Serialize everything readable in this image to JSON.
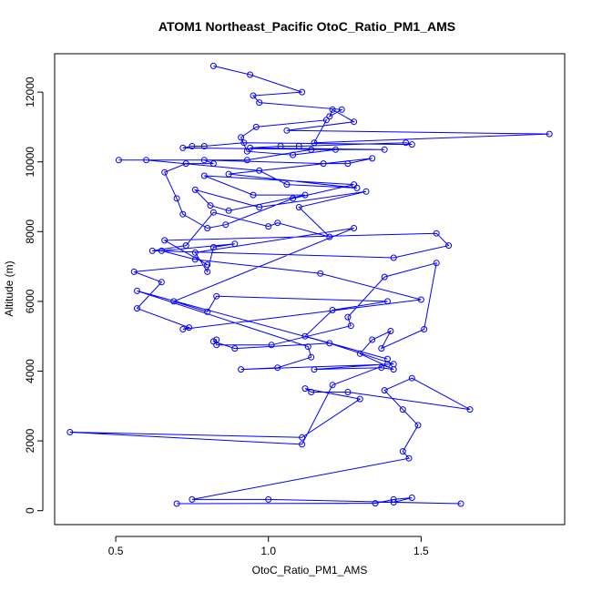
{
  "chart_data": {
    "type": "line",
    "title": "ATOM1 Northeast_Pacific OtoC_Ratio_PM1_AMS",
    "xlabel": "OtoC_Ratio_PM1_AMS",
    "ylabel": "Altitude (m)",
    "xlim": [
      0.3,
      1.97
    ],
    "ylim": [
      -400,
      13100
    ],
    "xticks": [
      0.5,
      1.0,
      1.5
    ],
    "xtick_labels": [
      "0.5",
      "1.0",
      "1.5"
    ],
    "yticks": [
      0,
      2000,
      4000,
      6000,
      8000,
      10000,
      12000
    ],
    "ytick_labels": [
      "0",
      "2000",
      "4000",
      "6000",
      "8000",
      "10000",
      "12000"
    ],
    "grid": false,
    "markers": "open-circle",
    "series_color": "#0000ff",
    "series": [
      {
        "x": [
          0.7,
          1.35,
          1.41,
          1.47,
          1.41,
          1.63,
          1.0,
          0.75,
          1.46,
          1.44,
          1.49,
          1.44,
          1.38,
          1.47,
          1.66,
          1.26,
          1.14,
          1.12,
          1.3,
          1.11,
          0.35,
          1.11,
          1.21,
          1.39,
          1.15,
          1.37,
          1.41,
          1.3,
          1.34,
          1.4,
          1.37,
          1.51,
          1.55,
          1.38,
          1.26,
          1.27,
          1.01,
          0.83,
          0.83,
          0.82,
          0.89,
          1.2,
          1.41,
          0.91,
          1.03,
          1.14,
          1.13,
          0.57,
          1.39,
          1.12,
          1.21,
          1.39,
          0.83,
          0.8,
          0.69,
          1.28,
          0.76,
          0.8,
          0.82,
          0.89,
          0.65,
          0.76,
          1.17,
          1.5,
          0.72,
          0.74,
          0.57,
          0.65,
          0.56,
          0.8,
          0.66,
          1.55,
          1.59,
          1.41,
          0.62,
          0.73,
          0.82,
          1.0,
          1.03,
          1.2,
          1.1,
          1.32,
          0.97,
          0.76,
          0.81,
          0.87,
          1.12,
          0.95,
          0.79,
          1.28,
          1.08,
          0.86,
          0.8,
          0.72,
          0.7,
          0.66,
          0.73,
          0.82,
          0.79,
          1.18,
          1.26,
          1.34,
          0.87,
          1.29,
          1.06,
          0.97,
          0.6,
          0.51,
          0.93,
          1.14,
          1.38,
          0.94,
          1.04,
          1.1,
          1.45,
          1.47,
          0.92,
          0.79,
          0.75,
          0.72,
          1.22,
          1.08,
          0.93,
          0.91,
          0.96,
          1.19,
          1.15,
          1.92,
          1.06,
          1.28,
          1.21,
          1.2,
          1.24,
          0.97,
          0.95,
          1.11,
          0.94,
          0.82
        ]
      }
    ],
    "y": [
      200,
      210,
      320,
      370,
      240,
      200,
      320,
      320,
      1500,
      1700,
      2450,
      2900,
      3450,
      3800,
      2900,
      3400,
      3400,
      3500,
      3200,
      2100,
      2250,
      1900,
      3600,
      4200,
      4050,
      4100,
      4050,
      4500,
      4900,
      5150,
      4650,
      5200,
      7100,
      6700,
      5550,
      5300,
      4750,
      4750,
      4900,
      4850,
      4650,
      4800,
      4200,
      4050,
      4100,
      4400,
      4700,
      6300,
      4350,
      5000,
      5750,
      6000,
      6150,
      5700,
      6000,
      8100,
      7400,
      6850,
      7550,
      7650,
      7450,
      7200,
      6800,
      6050,
      5200,
      5250,
      5800,
      6550,
      6850,
      7050,
      7750,
      7950,
      7600,
      7250,
      7450,
      7600,
      8550,
      8150,
      8250,
      7850,
      8700,
      9150,
      8700,
      9200,
      8750,
      8600,
      9050,
      9050,
      9600,
      9350,
      8950,
      8200,
      8100,
      8500,
      8950,
      9700,
      9950,
      9950,
      10050,
      9950,
      9950,
      10100,
      9650,
      9250,
      9350,
      9750,
      10050,
      10050,
      10050,
      10350,
      10350,
      10400,
      10450,
      10450,
      10550,
      10500,
      10550,
      10450,
      10450,
      10400,
      10350,
      10200,
      10300,
      10700,
      11000,
      11200,
      10550,
      10800,
      10900,
      11150,
      11500,
      11300,
      11500,
      11700,
      11900,
      12000,
      12500,
      12750
    ]
  }
}
